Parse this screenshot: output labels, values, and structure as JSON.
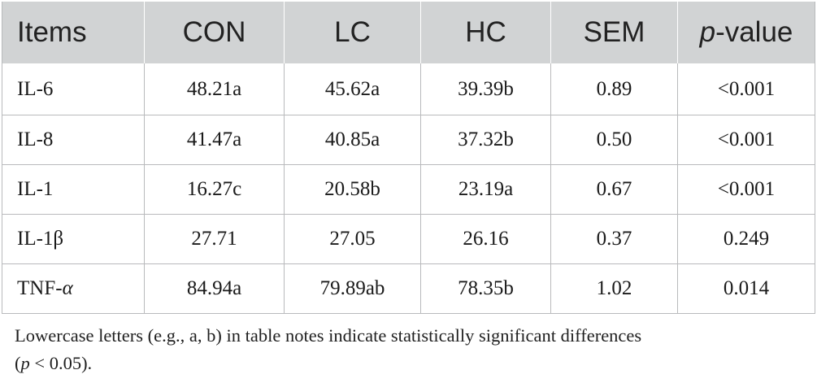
{
  "table": {
    "headers": [
      "Items",
      "CON",
      "LC",
      "HC",
      "SEM",
      "-value"
    ],
    "p_prefix": "p",
    "rows": [
      {
        "item": "IL-6",
        "con": "48.21a",
        "lc": "45.62a",
        "hc": "39.39b",
        "sem": "0.89",
        "p": "<0.001"
      },
      {
        "item": "IL-8",
        "con": "41.47a",
        "lc": "40.85a",
        "hc": "37.32b",
        "sem": "0.50",
        "p": "<0.001"
      },
      {
        "item": "IL-1",
        "con": "16.27c",
        "lc": "20.58b",
        "hc": "23.19a",
        "sem": "0.67",
        "p": "<0.001"
      },
      {
        "item": "IL-1β",
        "con": "27.71",
        "lc": "27.05",
        "hc": "26.16",
        "sem": "0.37",
        "p": "0.249"
      },
      {
        "item": "TNF-",
        "item_italic": "α",
        "con": "84.94a",
        "lc": "79.89ab",
        "hc": "78.35b",
        "sem": "1.02",
        "p": "0.014"
      }
    ]
  },
  "note": {
    "line1": "Lowercase letters (e.g., a, b) in table notes indicate statistically significant differences",
    "open_paren": "(",
    "p_italic": "p",
    "rest": " < 0.05)."
  }
}
